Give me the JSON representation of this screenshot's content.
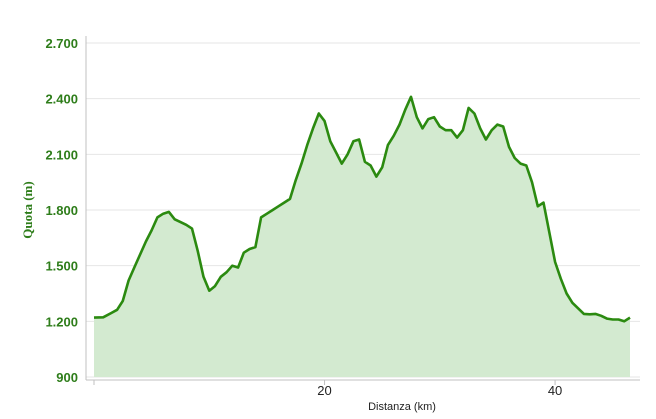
{
  "colors": {
    "line": "#2b8a10",
    "fill": "#d3ead0",
    "grid": "#e6e6e6",
    "axis": "#c0c0c0",
    "ytick_text": "#2e7d1a"
  },
  "chart_data": {
    "type": "area",
    "xlabel": "Distanza (km)",
    "ylabel": "Quota (m)",
    "xlim": [
      0,
      46.5
    ],
    "ylim": [
      900,
      2700
    ],
    "yticks": [
      900,
      1200,
      1500,
      1800,
      2100,
      2400,
      2700
    ],
    "ytick_labels": [
      "900",
      "1.200",
      "1.500",
      "1.800",
      "2.100",
      "2.400",
      "2.700"
    ],
    "xticks": [
      20,
      40
    ],
    "xtick_labels": [
      "20",
      "40"
    ],
    "grid": true,
    "legend": "none",
    "x": [
      0,
      0.8,
      1.5,
      2.0,
      2.5,
      3.0,
      3.5,
      4.0,
      4.5,
      5.0,
      5.5,
      6.0,
      6.5,
      7.0,
      7.5,
      8.0,
      8.5,
      9.0,
      9.5,
      10.0,
      10.5,
      11.0,
      11.5,
      12.0,
      12.5,
      13.0,
      13.5,
      14.0,
      14.5,
      15.0,
      15.5,
      16.0,
      16.5,
      17.0,
      17.5,
      18.0,
      18.5,
      19.0,
      19.5,
      20.0,
      20.5,
      21.0,
      21.5,
      22.0,
      22.5,
      23.0,
      23.5,
      24.0,
      24.5,
      25.0,
      25.5,
      26.0,
      26.5,
      27.0,
      27.5,
      28.0,
      28.5,
      29.0,
      29.5,
      30.0,
      30.5,
      31.0,
      31.5,
      32.0,
      32.5,
      33.0,
      33.5,
      34.0,
      34.5,
      35.0,
      35.5,
      36.0,
      36.5,
      37.0,
      37.5,
      38.0,
      38.5,
      39.0,
      39.5,
      40.0,
      40.5,
      41.0,
      41.5,
      42.0,
      42.5,
      43.0,
      43.5,
      44.0,
      44.5,
      45.0,
      45.5,
      46.0,
      46.5
    ],
    "y": [
      1220,
      1222,
      1245,
      1262,
      1310,
      1420,
      1490,
      1560,
      1630,
      1690,
      1760,
      1780,
      1790,
      1750,
      1735,
      1720,
      1700,
      1580,
      1440,
      1365,
      1390,
      1440,
      1465,
      1500,
      1490,
      1570,
      1590,
      1600,
      1760,
      1780,
      1800,
      1820,
      1840,
      1860,
      1960,
      2050,
      2150,
      2240,
      2320,
      2280,
      2170,
      2110,
      2050,
      2100,
      2170,
      2180,
      2060,
      2040,
      1980,
      2030,
      2150,
      2200,
      2260,
      2340,
      2410,
      2300,
      2240,
      2290,
      2300,
      2250,
      2230,
      2230,
      2190,
      2230,
      2350,
      2320,
      2240,
      2180,
      2230,
      2260,
      2250,
      2140,
      2080,
      2050,
      2040,
      1950,
      1820,
      1840,
      1680,
      1520,
      1430,
      1350,
      1300,
      1270,
      1240,
      1238,
      1240,
      1230,
      1215,
      1210,
      1210,
      1200,
      1220
    ]
  }
}
